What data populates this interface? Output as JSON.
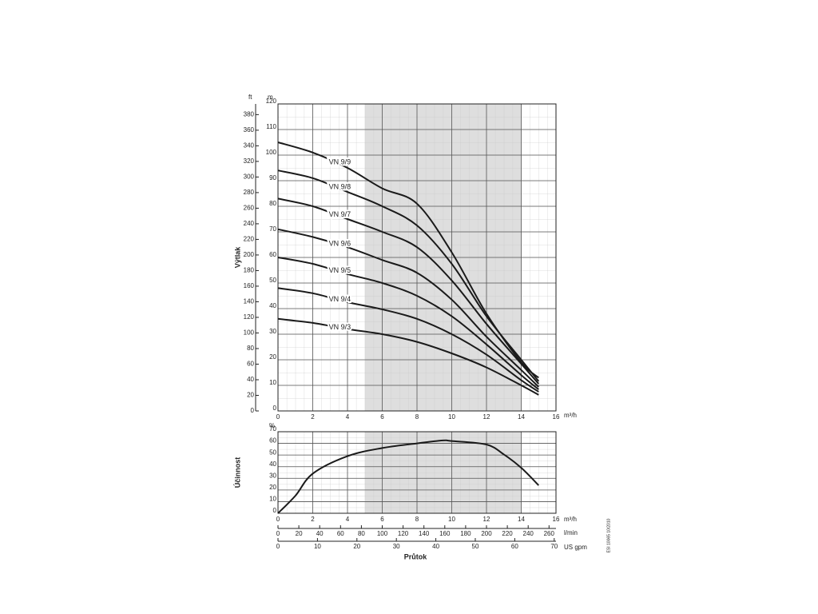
{
  "chart_data": [
    {
      "type": "line",
      "y_label": "Výtlak",
      "y_unit": "m",
      "y2_unit": "ft",
      "x_unit": "m³/h",
      "x": [
        0,
        2,
        4,
        6,
        8,
        10,
        12,
        14,
        15
      ],
      "xlim": [
        0,
        16
      ],
      "xticks": [
        0,
        2,
        4,
        6,
        8,
        10,
        12,
        14,
        16
      ],
      "ylim": [
        0,
        120
      ],
      "yticks": [
        0,
        10,
        20,
        30,
        40,
        50,
        60,
        70,
        80,
        90,
        100,
        110,
        120
      ],
      "y2lim": [
        0,
        393.7
      ],
      "y2ticks": [
        0,
        20,
        40,
        60,
        80,
        100,
        120,
        140,
        160,
        180,
        200,
        220,
        240,
        260,
        280,
        300,
        320,
        340,
        360,
        380
      ],
      "highlight": [
        5,
        14
      ],
      "grid": true,
      "series": [
        {
          "name": "VN 9/9",
          "color": "#1a1a1a",
          "values": [
            105,
            101,
            95,
            87,
            81,
            62,
            38,
            19,
            13
          ]
        },
        {
          "name": "VN 9/8",
          "color": "#1a1a1a",
          "values": [
            94,
            91,
            85.6,
            80,
            72.5,
            57.5,
            37,
            20,
            11.6
          ]
        },
        {
          "name": "VN 9/7",
          "color": "#1a1a1a",
          "values": [
            83,
            80,
            75,
            70,
            64,
            51,
            34,
            18.4,
            10.6
          ]
        },
        {
          "name": "VN 9/6",
          "color": "#1a1a1a",
          "values": [
            71,
            68,
            64,
            59,
            54,
            43.5,
            29,
            16,
            9.4
          ]
        },
        {
          "name": "VN 9/5",
          "color": "#1a1a1a",
          "values": [
            60,
            57.5,
            53.5,
            50,
            45,
            37,
            26,
            14,
            8.4
          ]
        },
        {
          "name": "VN 9/4",
          "color": "#1a1a1a",
          "values": [
            48,
            46,
            42.5,
            39.7,
            36,
            30,
            22,
            12,
            7.5
          ]
        },
        {
          "name": "VN 9/3",
          "color": "#1a1a1a",
          "values": [
            36,
            34.4,
            32,
            30,
            27,
            22.5,
            17,
            10,
            6.3
          ]
        }
      ]
    },
    {
      "type": "line",
      "y_label": "Účinnost",
      "y_unit": "%",
      "x_unit": "m³/h",
      "x_label": "Průtok",
      "x": [
        0,
        1,
        2,
        4,
        6,
        8,
        9.5,
        10,
        12,
        13,
        14,
        15
      ],
      "values": [
        0,
        15,
        34,
        49,
        56,
        60,
        62.5,
        62,
        59,
        50.5,
        39,
        24
      ],
      "color": "#1a1a1a",
      "xlim": [
        0,
        16
      ],
      "xticks": [
        0,
        2,
        4,
        6,
        8,
        10,
        12,
        14,
        16
      ],
      "ylim": [
        0,
        70
      ],
      "yticks": [
        0,
        10,
        20,
        30,
        40,
        50,
        60,
        70
      ],
      "x2_unit": "l/min",
      "x2lim": [
        0,
        266.67
      ],
      "x2ticks": [
        0,
        20,
        40,
        60,
        80,
        100,
        120,
        140,
        160,
        180,
        200,
        220,
        240,
        260
      ],
      "x3_unit": "US gpm",
      "x3lim": [
        0,
        70.45
      ],
      "x3ticks": [
        0,
        10,
        20,
        30,
        40,
        50,
        60,
        70
      ],
      "highlight": [
        5,
        14
      ],
      "grid": true
    }
  ],
  "side_note": "ESI 10065 10/2010"
}
